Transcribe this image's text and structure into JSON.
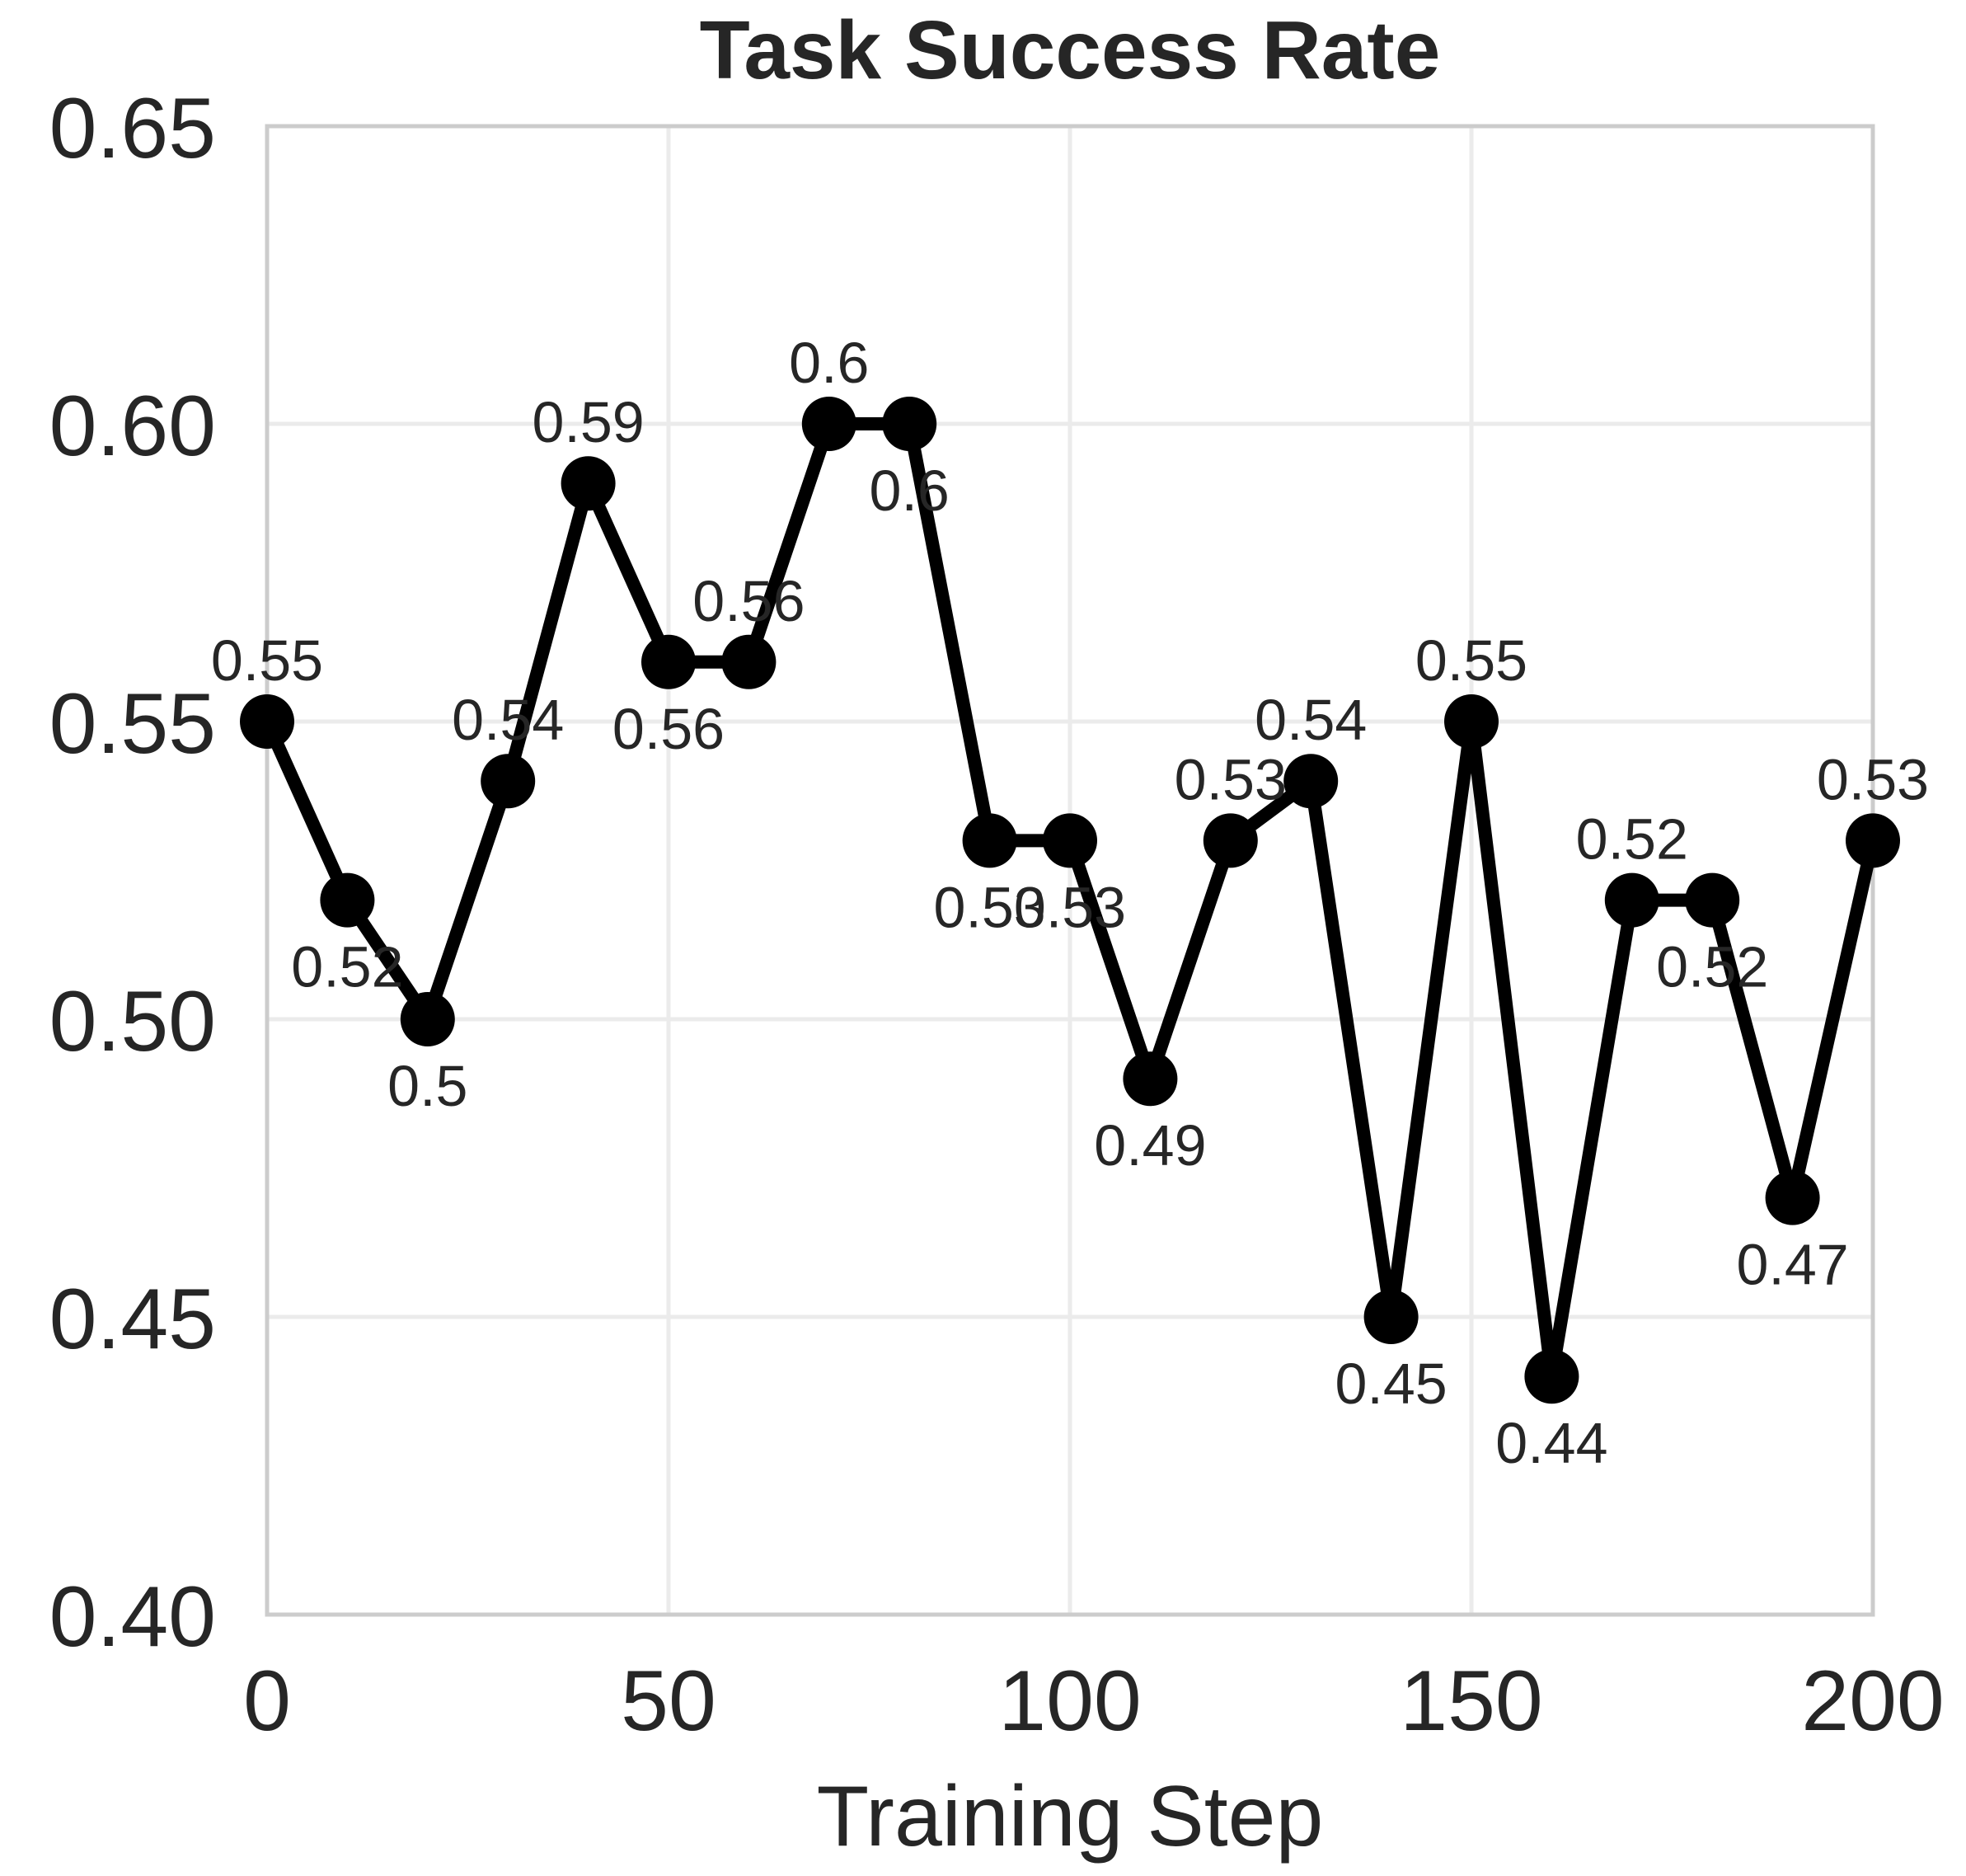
{
  "chart_data": {
    "type": "line",
    "title": "Task Success Rate",
    "xlabel": "Training Step",
    "ylabel": "",
    "xlim": [
      0,
      200
    ],
    "ylim": [
      0.4,
      0.65
    ],
    "xticks": [
      0,
      50,
      100,
      150,
      200
    ],
    "xtick_labels": [
      "0",
      "50",
      "100",
      "150",
      "200"
    ],
    "yticks": [
      0.4,
      0.45,
      0.5,
      0.55,
      0.6,
      0.65
    ],
    "ytick_labels": [
      "0.40",
      "0.45",
      "0.50",
      "0.55",
      "0.60",
      "0.65"
    ],
    "grid": true,
    "series": [
      {
        "name": "Task Success Rate",
        "color": "#000000",
        "x": [
          0,
          10,
          20,
          30,
          40,
          50,
          60,
          70,
          80,
          90,
          100,
          110,
          120,
          130,
          140,
          150,
          160,
          170,
          180,
          190,
          200
        ],
        "y": [
          0.55,
          0.52,
          0.5,
          0.54,
          0.59,
          0.56,
          0.56,
          0.6,
          0.6,
          0.53,
          0.53,
          0.49,
          0.53,
          0.54,
          0.45,
          0.55,
          0.44,
          0.52,
          0.52,
          0.47,
          0.53
        ],
        "labels": [
          "0.55",
          "0.52",
          "0.5",
          "0.54",
          "0.59",
          "0.56",
          "0.56",
          "0.6",
          "0.6",
          "0.53",
          "0.53",
          "0.49",
          "0.53",
          "0.54",
          "0.45",
          "0.55",
          "0.44",
          "0.52",
          "0.52",
          "0.47",
          "0.53"
        ],
        "label_positions": [
          "above",
          "below",
          "below",
          "above",
          "above",
          "below",
          "above",
          "above",
          "below",
          "below",
          "below",
          "below",
          "above",
          "above",
          "below",
          "above",
          "below",
          "above",
          "below",
          "below",
          "above"
        ]
      }
    ]
  }
}
